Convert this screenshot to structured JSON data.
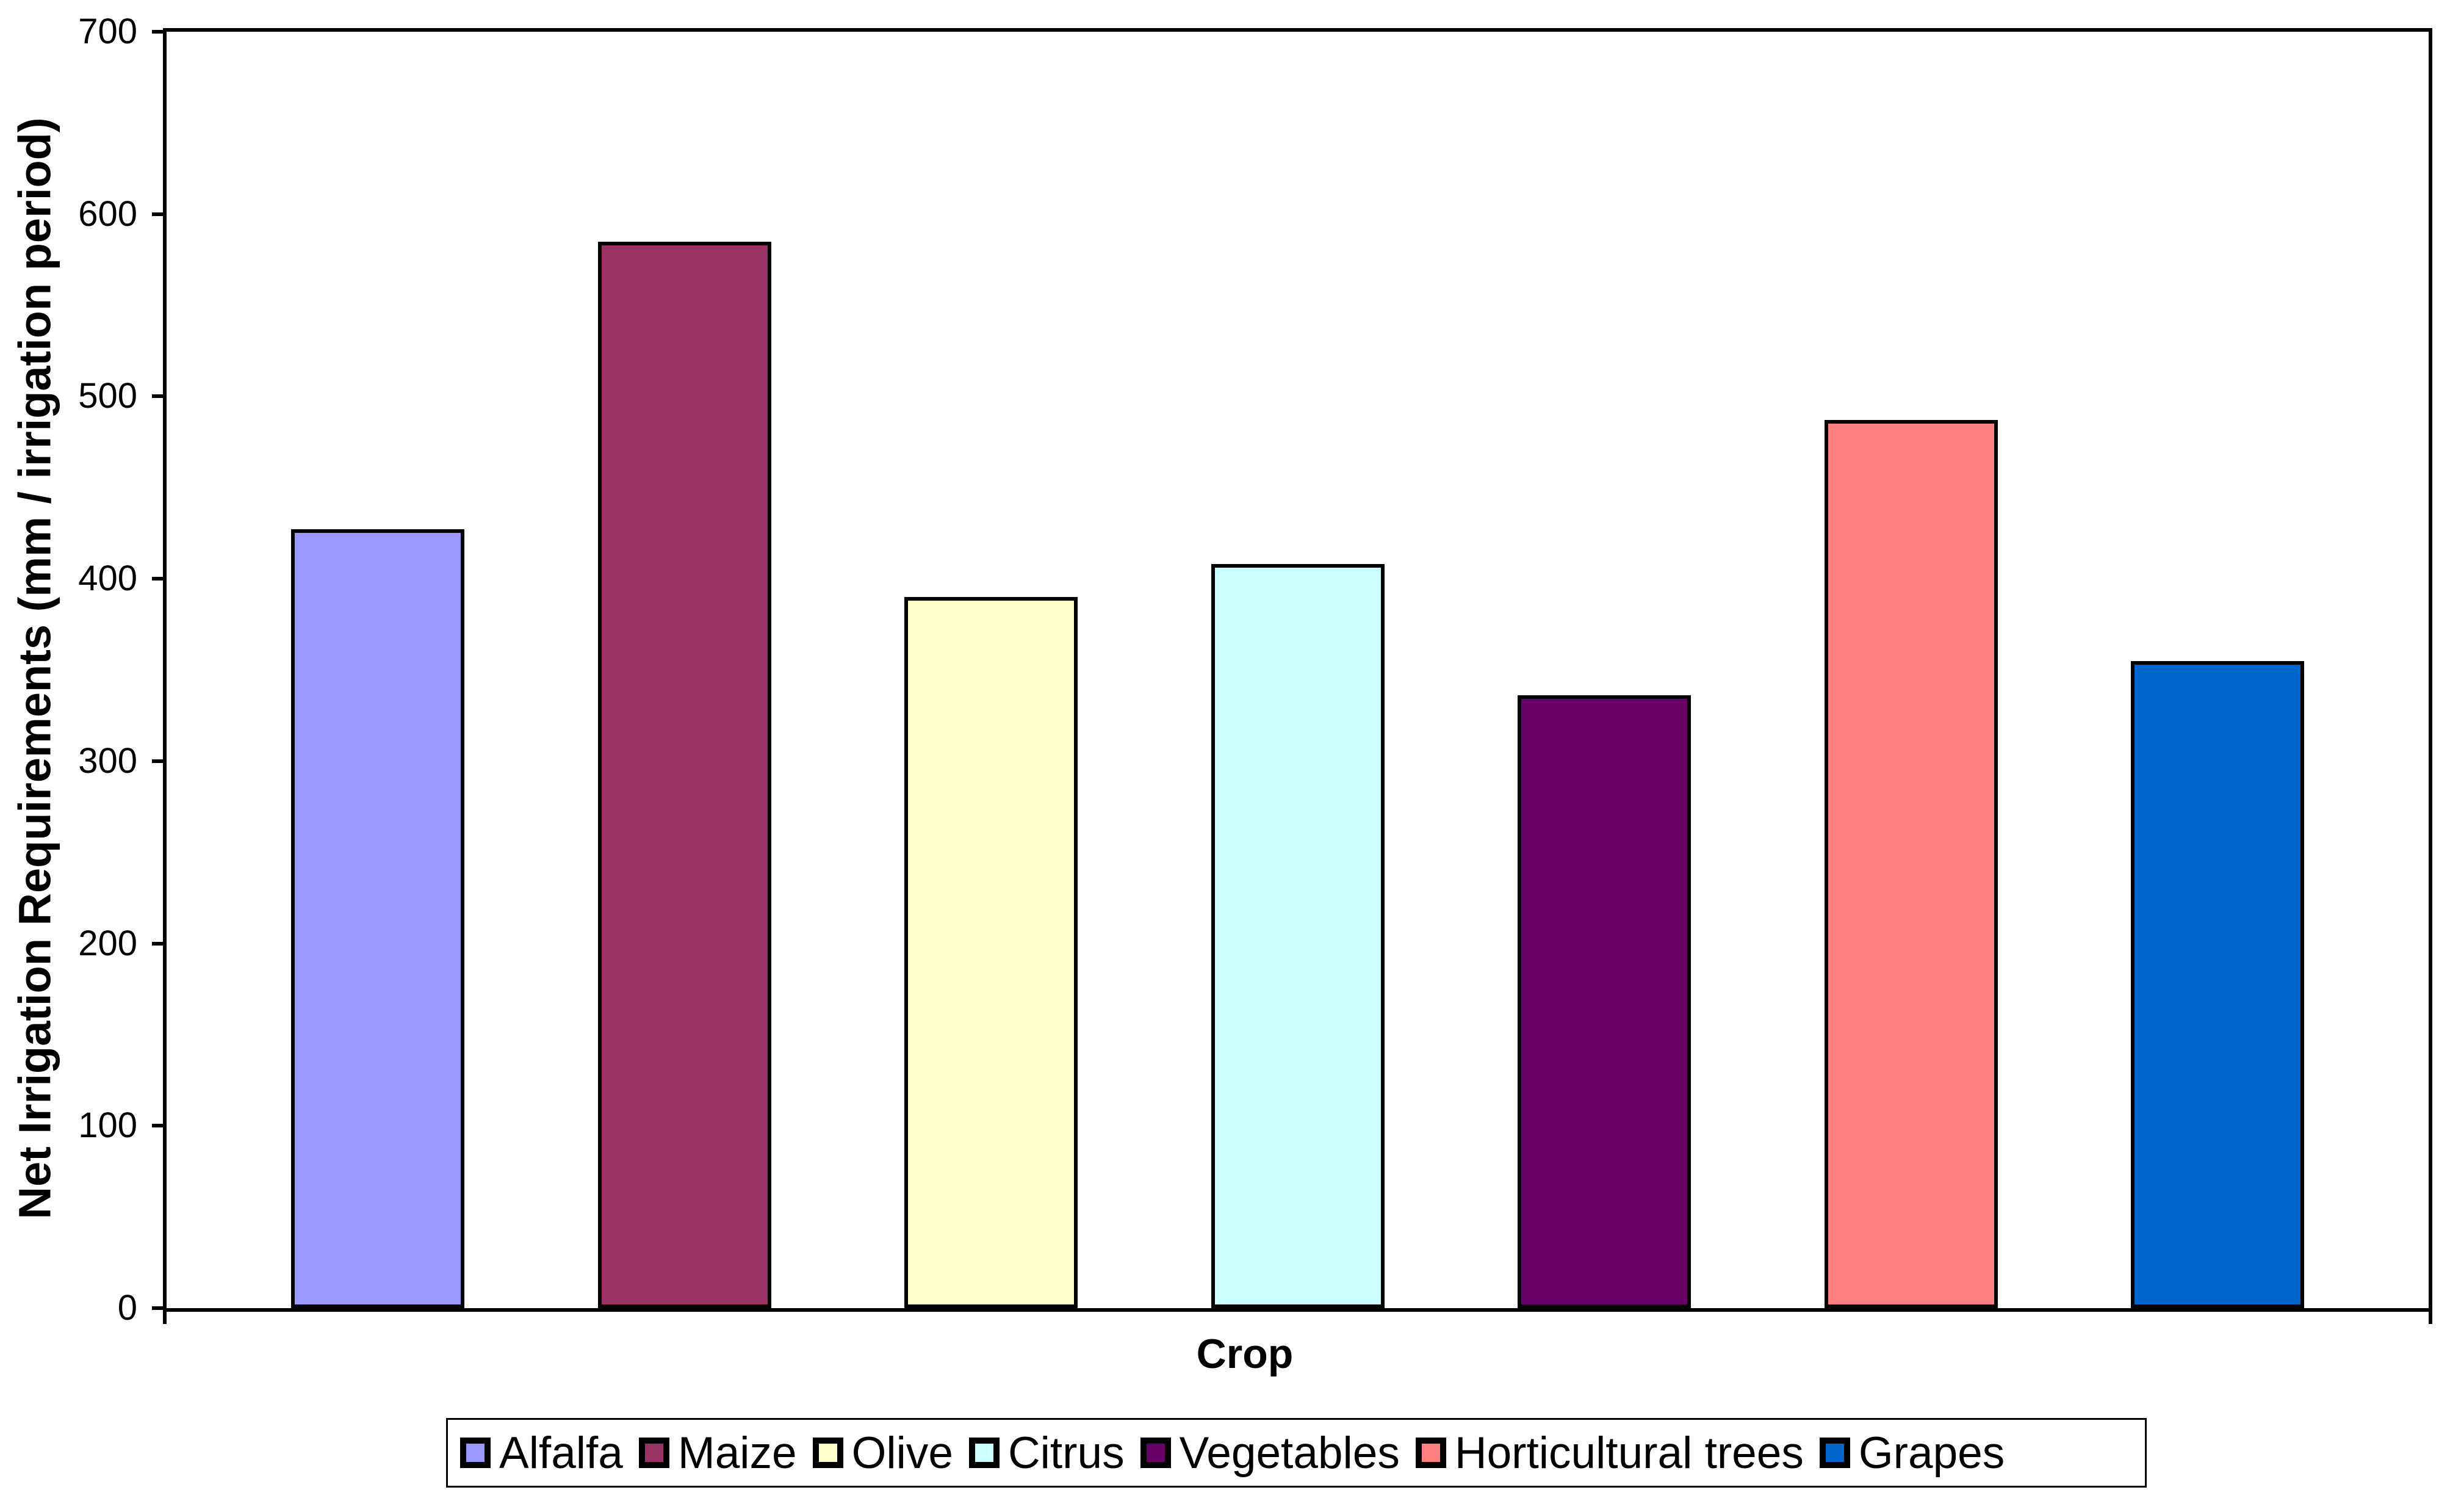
{
  "chart_data": {
    "type": "bar",
    "title": "",
    "xlabel": "Crop",
    "ylabel": "Net Irrigation Requirements (mm / irrigation period)",
    "categories": [
      "Alfalfa",
      "Maize",
      "Olive",
      "Citrus",
      "Vegetables",
      "Horticultural trees",
      "Grapes"
    ],
    "values": [
      427,
      585,
      390,
      408,
      336,
      487,
      355
    ],
    "colors": [
      "#9999FF",
      "#993366",
      "#FFFFCC",
      "#CCFFFF",
      "#660066",
      "#FF8080",
      "#0066CC"
    ],
    "bar_border_color": "#000000",
    "ylim": [
      0,
      700
    ],
    "ytick_step": 100,
    "ytick_labels": [
      "0",
      "100",
      "200",
      "300",
      "400",
      "500",
      "600",
      "700"
    ],
    "grid": false,
    "legend": {
      "position": "bottom",
      "entries": [
        "Alfalfa",
        "Maize",
        "Olive",
        "Citrus",
        "Vegetables",
        "Horticultural trees",
        "Grapes"
      ]
    }
  }
}
